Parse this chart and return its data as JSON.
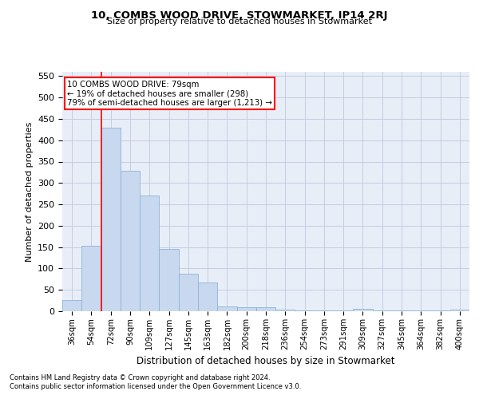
{
  "title": "10, COMBS WOOD DRIVE, STOWMARKET, IP14 2RJ",
  "subtitle": "Size of property relative to detached houses in Stowmarket",
  "xlabel": "Distribution of detached houses by size in Stowmarket",
  "ylabel": "Number of detached properties",
  "categories": [
    "36sqm",
    "54sqm",
    "72sqm",
    "90sqm",
    "109sqm",
    "127sqm",
    "145sqm",
    "163sqm",
    "182sqm",
    "200sqm",
    "218sqm",
    "236sqm",
    "254sqm",
    "273sqm",
    "291sqm",
    "309sqm",
    "327sqm",
    "345sqm",
    "364sqm",
    "382sqm",
    "400sqm"
  ],
  "values": [
    27,
    153,
    430,
    328,
    270,
    145,
    88,
    68,
    12,
    9,
    10,
    4,
    2,
    2,
    2,
    5,
    2,
    2,
    2,
    2,
    4
  ],
  "bar_color": "#c8d8ee",
  "bar_edge_color": "#8ab4d8",
  "grid_color": "#c0c8dc",
  "background_color": "#e8eef8",
  "annotation_line1": "10 COMBS WOOD DRIVE: 79sqm",
  "annotation_line2": "← 19% of detached houses are smaller (298)",
  "annotation_line3": "79% of semi-detached houses are larger (1,213) →",
  "annotation_box_color": "white",
  "annotation_box_edge_color": "red",
  "footnote1": "Contains HM Land Registry data © Crown copyright and database right 2024.",
  "footnote2": "Contains public sector information licensed under the Open Government Licence v3.0.",
  "ylim": [
    0,
    560
  ],
  "yticks": [
    0,
    50,
    100,
    150,
    200,
    250,
    300,
    350,
    400,
    450,
    500,
    550
  ],
  "red_line_bar_index": 1.5
}
